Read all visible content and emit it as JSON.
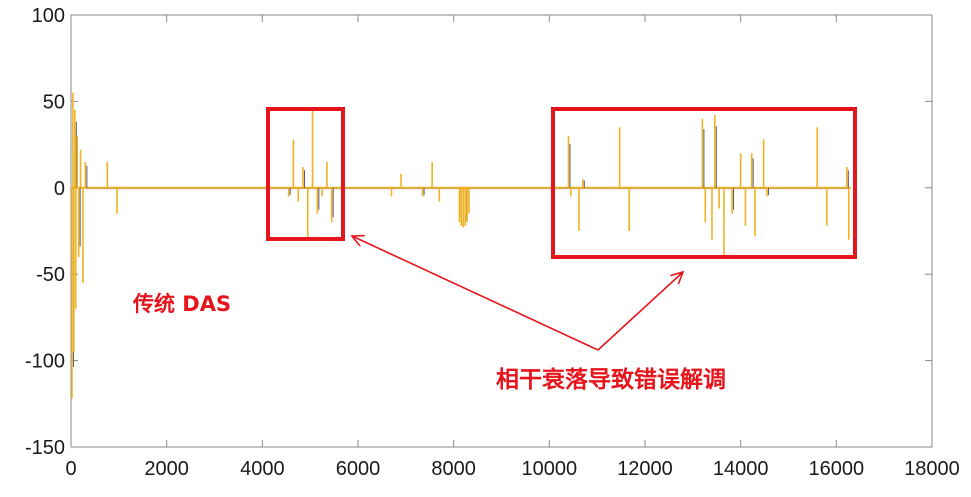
{
  "chart_data": {
    "type": "line",
    "title": "",
    "xlabel": "",
    "ylabel": "",
    "xlim": [
      0,
      18000
    ],
    "ylim": [
      -150,
      100
    ],
    "xticks": [
      0,
      2000,
      4000,
      6000,
      8000,
      10000,
      12000,
      14000,
      16000,
      18000
    ],
    "yticks": [
      100,
      50,
      0,
      -50,
      -100,
      -150
    ],
    "grid": false,
    "series_color": "#f0b323",
    "secondary_color": "#5a5a78",
    "spikes": [
      [
        20,
        -122
      ],
      [
        40,
        55
      ],
      [
        60,
        -95
      ],
      [
        80,
        45
      ],
      [
        100,
        -70
      ],
      [
        130,
        30
      ],
      [
        160,
        -40
      ],
      [
        200,
        22
      ],
      [
        250,
        -55
      ],
      [
        300,
        15
      ],
      [
        760,
        15
      ],
      [
        960,
        -15
      ],
      [
        4550,
        -5
      ],
      [
        4650,
        28
      ],
      [
        4750,
        -8
      ],
      [
        4850,
        12
      ],
      [
        4950,
        -30
      ],
      [
        5050,
        45
      ],
      [
        5150,
        -15
      ],
      [
        5250,
        -5
      ],
      [
        5350,
        15
      ],
      [
        5450,
        -20
      ],
      [
        6700,
        -5
      ],
      [
        6900,
        8
      ],
      [
        7350,
        -5
      ],
      [
        7550,
        15
      ],
      [
        7700,
        -8
      ],
      [
        8120,
        -20
      ],
      [
        8160,
        -22
      ],
      [
        8200,
        -23
      ],
      [
        8240,
        -22
      ],
      [
        8280,
        -20
      ],
      [
        8320,
        -15
      ],
      [
        10400,
        30
      ],
      [
        10450,
        -5
      ],
      [
        10620,
        -25
      ],
      [
        10700,
        5
      ],
      [
        11470,
        35
      ],
      [
        11670,
        -25
      ],
      [
        13200,
        40
      ],
      [
        13260,
        -20
      ],
      [
        13400,
        -30
      ],
      [
        13460,
        42
      ],
      [
        13550,
        -12
      ],
      [
        13650,
        -40
      ],
      [
        13820,
        -15
      ],
      [
        14000,
        20
      ],
      [
        14100,
        -22
      ],
      [
        14230,
        20
      ],
      [
        14300,
        -28
      ],
      [
        14480,
        28
      ],
      [
        14550,
        -5
      ],
      [
        15600,
        35
      ],
      [
        15800,
        -22
      ],
      [
        16220,
        12
      ],
      [
        16260,
        -30
      ]
    ]
  },
  "annotations": {
    "label_das": "传统 DAS",
    "label_fading": "相干衰落导致错误解调"
  },
  "colors": {
    "annotation_red": "#e8141b",
    "axis": "#555555"
  }
}
